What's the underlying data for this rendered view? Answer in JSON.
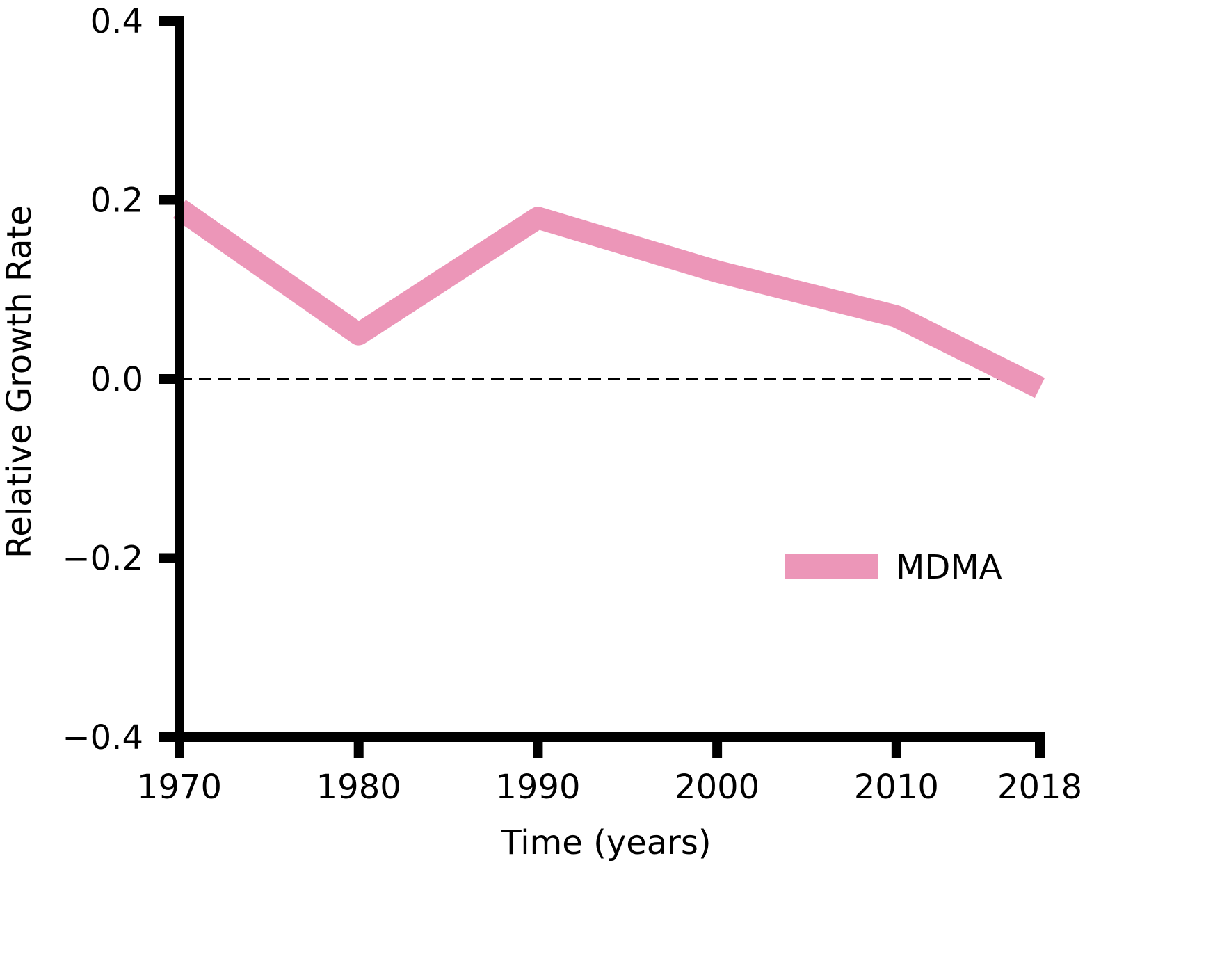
{
  "chart_data": {
    "type": "line",
    "x": [
      1970,
      1980,
      1990,
      2000,
      2010,
      2018
    ],
    "series": [
      {
        "name": "MDMA",
        "color": "#ec96b8",
        "values": [
          0.19,
          0.05,
          0.18,
          0.12,
          0.07,
          -0.01
        ]
      }
    ],
    "xticks": [
      "1970",
      "1980",
      "1990",
      "2000",
      "2010",
      "2018"
    ],
    "yticks": [
      "0.4",
      "0.2",
      "0.0",
      "−0.2",
      "−0.4"
    ],
    "ytick_values": [
      0.4,
      0.2,
      0.0,
      -0.2,
      -0.4
    ],
    "xlabel": "Time (years)",
    "ylabel": "Relative Growth Rate",
    "xlim": [
      1970,
      2018
    ],
    "ylim": [
      -0.4,
      0.4
    ],
    "reference_line": {
      "y": 0.0,
      "style": "dashed",
      "color": "#000000"
    },
    "grid": false,
    "legend": {
      "position": "lower-right"
    }
  }
}
